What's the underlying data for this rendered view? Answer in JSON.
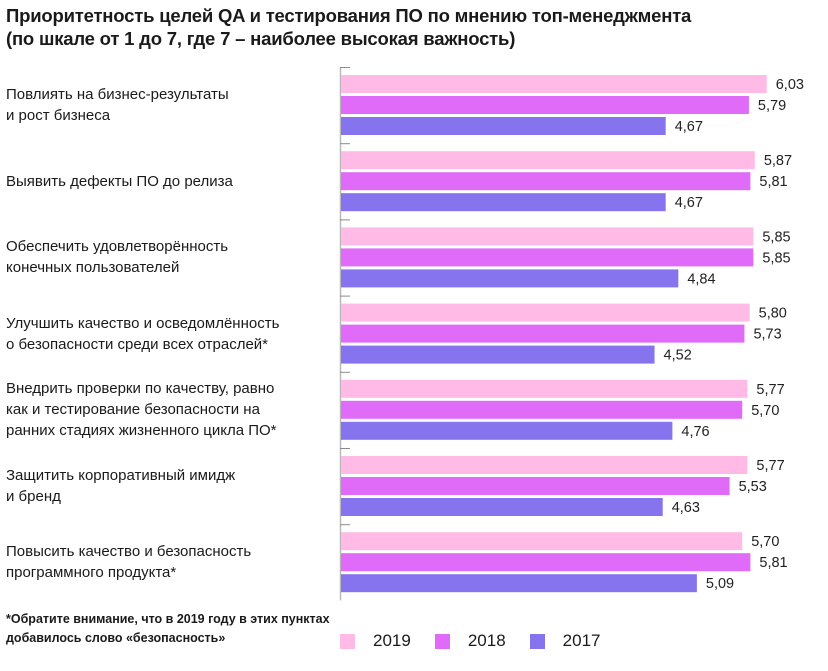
{
  "chart_data": {
    "type": "bar",
    "orientation": "horizontal",
    "title": "Приоритетность целей QA и тестирования ПО по мнению топ-менеджмента",
    "subtitle": "(по шкале от 1 до 7, где 7 – наиболее высокая важность)",
    "xlabel": "",
    "ylabel": "",
    "xlim": [
      0.3,
      6.5
    ],
    "grid": false,
    "legend_position": "bottom",
    "categories": [
      "Повлиять на бизнес-результаты\nи рост бизнеса",
      "Выявить дефекты ПО до релиза",
      "Обеспечить удовлетворённость\nконечных пользователей",
      "Улучшить качество и осведомлённость\nо безопасности среди всех отраслей*",
      "Внедрить проверки по качеству, равно\nкак и тестирование безопасности на\nранних стадиях жизненного цикла ПО*",
      "Защитить корпоративный имидж\nи бренд",
      "Повысить качество и безопасность\nпрограммного продукта*"
    ],
    "series": [
      {
        "name": "2019",
        "color": "#ffbbe6",
        "values": [
          6.03,
          5.87,
          5.85,
          5.8,
          5.77,
          5.77,
          5.7
        ],
        "labels": [
          "6,03",
          "5,87",
          "5,85",
          "5,80",
          "5,77",
          "5,77",
          "5,70"
        ]
      },
      {
        "name": "2018",
        "color": "#df6bf8",
        "values": [
          5.79,
          5.81,
          5.85,
          5.73,
          5.7,
          5.53,
          5.81
        ],
        "labels": [
          "5,79",
          "5,81",
          "5,85",
          "5,73",
          "5,70",
          "5,53",
          "5,81"
        ]
      },
      {
        "name": "2017",
        "color": "#8673ee",
        "values": [
          4.67,
          4.67,
          4.84,
          4.52,
          4.76,
          4.63,
          5.09
        ],
        "labels": [
          "4,67",
          "4,67",
          "4,84",
          "4,52",
          "4,76",
          "4,63",
          "5,09"
        ]
      }
    ],
    "footnote": "*Обратите внимание, что в 2019 году в этих пунктах добавилось слово «безопасность»"
  }
}
